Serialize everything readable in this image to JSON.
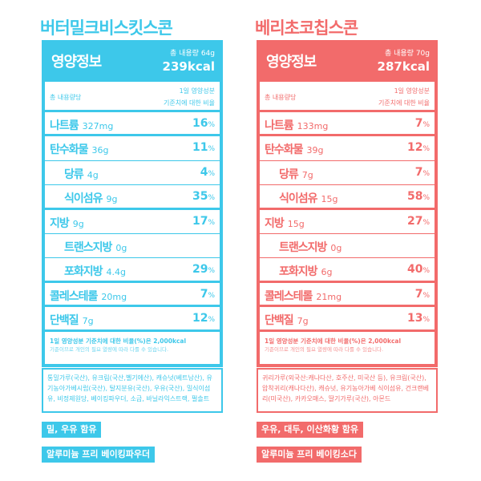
{
  "products": [
    {
      "name": "버터밀크비스킷스콘",
      "accent": "#3dc8ea",
      "header_title": "영양정보",
      "serving": "총 내용량 64g",
      "kcal": "239kcal",
      "serving_label": "총 내용량당",
      "dv_label_1": "1일 영양성분",
      "dv_label_2": "기준치에 대한 비율",
      "nutrients": [
        {
          "name": "나트륨",
          "amount": "327mg",
          "pct": "16",
          "indent": false,
          "major": true
        },
        {
          "name": "탄수화물",
          "amount": "36g",
          "pct": "11",
          "indent": false,
          "major": false
        },
        {
          "name": "당류",
          "amount": "4g",
          "pct": "4",
          "indent": true,
          "major": false
        },
        {
          "name": "식이섬유",
          "amount": "9g",
          "pct": "35",
          "indent": true,
          "major": true
        },
        {
          "name": "지방",
          "amount": "9g",
          "pct": "17",
          "indent": false,
          "major": false
        },
        {
          "name": "트랜스지방",
          "amount": "0g",
          "pct": "",
          "indent": true,
          "major": false
        },
        {
          "name": "포화지방",
          "amount": "4.4g",
          "pct": "29",
          "indent": true,
          "major": true
        },
        {
          "name": "콜레스테롤",
          "amount": "20mg",
          "pct": "7",
          "indent": false,
          "major": true
        },
        {
          "name": "단백질",
          "amount": "7g",
          "pct": "12",
          "indent": false,
          "major": true
        }
      ],
      "footnote_1": "1일 영양성분 기준치에 대한 비율(%)은 2,000kcal",
      "footnote_2": "기준이므로 개인의 필요 열량에 따라 다를 수 있습니다.",
      "ingredients": "통밀가루(국산), 유크림(국산,벨기에산), 캐슈넛(베트남산), 유기농아가베시럽(국산), 탈지분유(국산), 우유(국산), 밀식이섬유, 비정제원당, 베이킹파우더, 소금, 바닐라익스트랙, 펄솔트",
      "allergen": "밀, 우유 함유",
      "note": "알루미늄 프리 베이킹파우더"
    },
    {
      "name": "베리초코칩스콘",
      "accent": "#f26b6b",
      "header_title": "영양정보",
      "serving": "총 내용량 70g",
      "kcal": "287kcal",
      "serving_label": "총 내용량당",
      "dv_label_1": "1일 영양성분",
      "dv_label_2": "기준치에 대한 비율",
      "nutrients": [
        {
          "name": "나트륨",
          "amount": "133mg",
          "pct": "7",
          "indent": false,
          "major": true
        },
        {
          "name": "탄수화물",
          "amount": "39g",
          "pct": "12",
          "indent": false,
          "major": false
        },
        {
          "name": "당류",
          "amount": "7g",
          "pct": "7",
          "indent": true,
          "major": false
        },
        {
          "name": "식이섬유",
          "amount": "15g",
          "pct": "58",
          "indent": true,
          "major": true
        },
        {
          "name": "지방",
          "amount": "15g",
          "pct": "27",
          "indent": false,
          "major": false
        },
        {
          "name": "트랜스지방",
          "amount": "0g",
          "pct": "",
          "indent": true,
          "major": false
        },
        {
          "name": "포화지방",
          "amount": "6g",
          "pct": "40",
          "indent": true,
          "major": true
        },
        {
          "name": "콜레스테롤",
          "amount": "21mg",
          "pct": "7",
          "indent": false,
          "major": true
        },
        {
          "name": "단백질",
          "amount": "7g",
          "pct": "13",
          "indent": false,
          "major": true
        }
      ],
      "footnote_1": "1일 영양성분 기준치에 대한 비율(%)은 2,000kcal",
      "footnote_2": "기준이므로 개인의 필요 열량에 따라 다를 수 있습니다.",
      "ingredients": "귀리가루(외국산:캐나다산, 호주산, 미국산 등), 유크림(국산), 압착귀리(캐나다산), 캐슈넛, 유기농아가베 식이섬유, 건크랜베리(미국산), 카카오매스, 딸기가루(국산), 아몬드",
      "allergen": "우유, 대두, 이산화황 함유",
      "note": "알루미늄 프리 베이킹소다"
    }
  ]
}
